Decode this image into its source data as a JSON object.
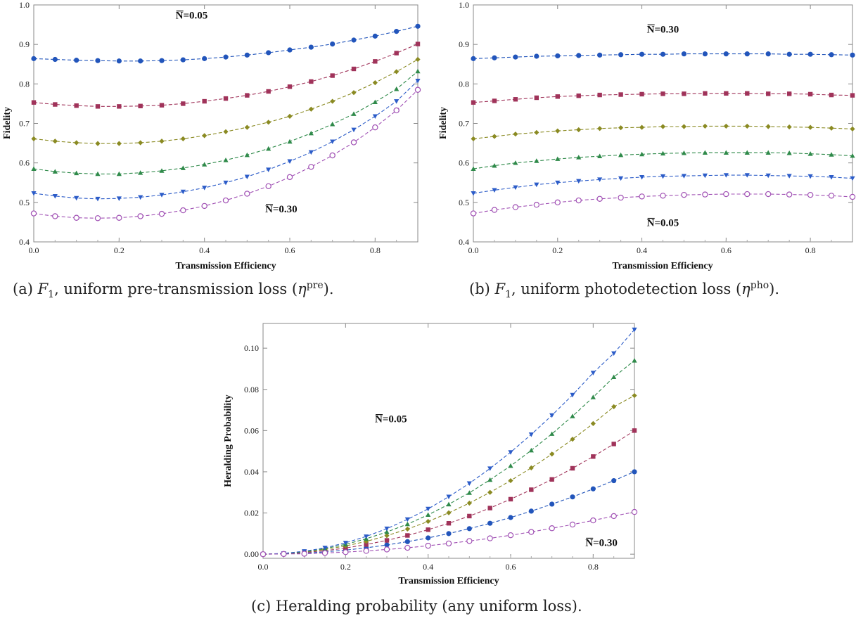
{
  "captions": {
    "a": {
      "prefix": "(a) ",
      "F": "F",
      "sub": "1",
      "mid": ", uniform pre-transmission loss (",
      "eta": "η",
      "sup": "pre",
      "end": ")."
    },
    "b": {
      "prefix": "(b) ",
      "F": "F",
      "sub": "1",
      "mid": ", uniform photodetection loss (",
      "eta": "η",
      "sup": "pho",
      "end": ")."
    },
    "c": {
      "text": "(c) Heralding probability (any uniform loss)."
    }
  },
  "series_styles": [
    {
      "color": "#2255bb",
      "marker": "circle"
    },
    {
      "color": "#a0335a",
      "marker": "square"
    },
    {
      "color": "#8a8a22",
      "marker": "diamond"
    },
    {
      "color": "#2f8a4a",
      "marker": "triangle-up"
    },
    {
      "color": "#2c5cc8",
      "marker": "triangle-down"
    },
    {
      "color": "#a050b4",
      "marker": "circle-open"
    }
  ],
  "chart_data": [
    {
      "type": "scatter",
      "xlabel": "Transmission Efficiency",
      "ylabel": "Fidelity",
      "xlim": [
        0,
        0.9
      ],
      "ylim": [
        0.4,
        1.0
      ],
      "xticks": [
        "0.0",
        "0.2",
        "0.4",
        "0.6",
        "0.8"
      ],
      "yticks": [
        "0.4",
        "0.5",
        "0.6",
        "0.7",
        "0.8",
        "0.9",
        "1.0"
      ],
      "annotations": [
        {
          "text": "N=0.05",
          "at_x": 0.37,
          "at_y": 0.965
        },
        {
          "text": "N=0.30",
          "at_x": 0.58,
          "at_y": 0.475
        }
      ],
      "x": [
        0,
        0.05,
        0.1,
        0.15,
        0.2,
        0.25,
        0.3,
        0.35,
        0.4,
        0.45,
        0.5,
        0.55,
        0.6,
        0.65,
        0.7,
        0.75,
        0.8,
        0.85,
        0.9
      ],
      "series": [
        {
          "values": [
            0.864,
            0.862,
            0.86,
            0.859,
            0.858,
            0.858,
            0.859,
            0.861,
            0.864,
            0.868,
            0.873,
            0.879,
            0.886,
            0.893,
            0.901,
            0.911,
            0.921,
            0.933,
            0.946
          ]
        },
        {
          "values": [
            0.753,
            0.748,
            0.745,
            0.743,
            0.743,
            0.744,
            0.746,
            0.75,
            0.756,
            0.763,
            0.771,
            0.781,
            0.793,
            0.806,
            0.821,
            0.838,
            0.857,
            0.878,
            0.901
          ]
        },
        {
          "values": [
            0.661,
            0.655,
            0.651,
            0.649,
            0.649,
            0.651,
            0.655,
            0.661,
            0.669,
            0.679,
            0.69,
            0.703,
            0.718,
            0.736,
            0.756,
            0.778,
            0.803,
            0.831,
            0.862
          ]
        },
        {
          "values": [
            0.585,
            0.578,
            0.574,
            0.572,
            0.572,
            0.575,
            0.58,
            0.587,
            0.596,
            0.607,
            0.62,
            0.636,
            0.654,
            0.675,
            0.698,
            0.724,
            0.754,
            0.787,
            0.832
          ]
        },
        {
          "values": [
            0.523,
            0.516,
            0.511,
            0.509,
            0.51,
            0.513,
            0.519,
            0.527,
            0.537,
            0.55,
            0.565,
            0.583,
            0.604,
            0.627,
            0.654,
            0.684,
            0.718,
            0.756,
            0.808
          ]
        },
        {
          "values": [
            0.472,
            0.465,
            0.461,
            0.46,
            0.461,
            0.465,
            0.471,
            0.48,
            0.491,
            0.505,
            0.522,
            0.541,
            0.564,
            0.59,
            0.619,
            0.652,
            0.69,
            0.733,
            0.785
          ]
        }
      ]
    },
    {
      "type": "scatter",
      "xlabel": "Transmission Efficiency",
      "ylabel": "Fidelity",
      "xlim": [
        0,
        0.9
      ],
      "ylim": [
        0.4,
        1.0
      ],
      "xticks": [
        "0.0",
        "0.2",
        "0.4",
        "0.6",
        "0.8"
      ],
      "yticks": [
        "0.4",
        "0.5",
        "0.6",
        "0.7",
        "0.8",
        "0.9",
        "1.0"
      ],
      "annotations": [
        {
          "text": "N=0.30",
          "at_x": 0.45,
          "at_y": 0.93
        },
        {
          "text": "N=0.05",
          "at_x": 0.45,
          "at_y": 0.44
        }
      ],
      "x": [
        0,
        0.05,
        0.1,
        0.15,
        0.2,
        0.25,
        0.3,
        0.35,
        0.4,
        0.45,
        0.5,
        0.55,
        0.6,
        0.65,
        0.7,
        0.75,
        0.8,
        0.85,
        0.9
      ],
      "series": [
        {
          "values": [
            0.864,
            0.866,
            0.868,
            0.87,
            0.871,
            0.872,
            0.873,
            0.874,
            0.875,
            0.875,
            0.876,
            0.876,
            0.876,
            0.876,
            0.876,
            0.875,
            0.875,
            0.874,
            0.873
          ]
        },
        {
          "values": [
            0.753,
            0.757,
            0.761,
            0.765,
            0.768,
            0.77,
            0.772,
            0.773,
            0.774,
            0.775,
            0.775,
            0.776,
            0.776,
            0.776,
            0.775,
            0.775,
            0.774,
            0.772,
            0.771
          ]
        },
        {
          "values": [
            0.661,
            0.667,
            0.673,
            0.677,
            0.681,
            0.684,
            0.687,
            0.689,
            0.69,
            0.692,
            0.692,
            0.693,
            0.693,
            0.693,
            0.692,
            0.691,
            0.69,
            0.688,
            0.686
          ]
        },
        {
          "values": [
            0.585,
            0.593,
            0.6,
            0.605,
            0.61,
            0.614,
            0.617,
            0.62,
            0.622,
            0.624,
            0.625,
            0.626,
            0.626,
            0.626,
            0.626,
            0.625,
            0.623,
            0.621,
            0.618
          ]
        },
        {
          "values": [
            0.523,
            0.531,
            0.538,
            0.545,
            0.55,
            0.554,
            0.558,
            0.561,
            0.564,
            0.566,
            0.567,
            0.568,
            0.569,
            0.569,
            0.568,
            0.567,
            0.566,
            0.564,
            0.561
          ]
        },
        {
          "values": [
            0.472,
            0.481,
            0.488,
            0.494,
            0.5,
            0.505,
            0.509,
            0.512,
            0.515,
            0.517,
            0.519,
            0.52,
            0.521,
            0.521,
            0.521,
            0.52,
            0.519,
            0.517,
            0.514
          ]
        }
      ]
    },
    {
      "type": "scatter",
      "xlabel": "Transmission Efficiency",
      "ylabel": "Heralding Probability",
      "xlim": [
        0,
        0.9
      ],
      "ylim": [
        -0.002,
        0.112
      ],
      "xticks": [
        "0.0",
        "0.2",
        "0.4",
        "0.6",
        "0.8"
      ],
      "yticks": [
        "0.00",
        "0.02",
        "0.04",
        "0.06",
        "0.08",
        "0.10"
      ],
      "annotations": [
        {
          "text": "N=0.05",
          "at_x": 0.31,
          "at_y": 0.064
        },
        {
          "text": "N=0.30",
          "at_x": 0.82,
          "at_y": 0.004
        }
      ],
      "x": [
        0,
        0.05,
        0.1,
        0.15,
        0.2,
        0.25,
        0.3,
        0.35,
        0.4,
        0.45,
        0.5,
        0.55,
        0.6,
        0.65,
        0.7,
        0.75,
        0.8,
        0.85,
        0.9
      ],
      "series": [
        {
          "values": [
            0.0,
            0.0001,
            0.0005,
            0.0011,
            0.002,
            0.0031,
            0.0045,
            0.0061,
            0.0079,
            0.01,
            0.0124,
            0.015,
            0.0178,
            0.0209,
            0.0243,
            0.0278,
            0.0317,
            0.0357,
            0.04
          ]
        },
        {
          "values": [
            0.0,
            0.0002,
            0.0008,
            0.0017,
            0.003,
            0.0047,
            0.0067,
            0.0091,
            0.0119,
            0.015,
            0.0185,
            0.0224,
            0.0267,
            0.0313,
            0.0363,
            0.0417,
            0.0474,
            0.0535,
            0.06
          ]
        },
        {
          "values": [
            0.0,
            0.0003,
            0.001,
            0.0023,
            0.004,
            0.0062,
            0.009,
            0.0122,
            0.0159,
            0.0201,
            0.0248,
            0.03,
            0.0357,
            0.0419,
            0.0486,
            0.0558,
            0.0634,
            0.0716,
            0.077
          ]
        },
        {
          "values": [
            0.0,
            0.0003,
            0.0012,
            0.0027,
            0.0048,
            0.0075,
            0.0108,
            0.0146,
            0.0191,
            0.0242,
            0.0298,
            0.0361,
            0.0429,
            0.0504,
            0.0584,
            0.067,
            0.0762,
            0.086,
            0.094
          ]
        },
        {
          "values": [
            0.0,
            0.0004,
            0.0014,
            0.0031,
            0.0055,
            0.0086,
            0.0124,
            0.0169,
            0.022,
            0.0279,
            0.0344,
            0.0416,
            0.0495,
            0.0581,
            0.0674,
            0.0773,
            0.088,
            0.0975,
            0.109
          ]
        },
        {
          "values": [
            0.0,
            0.0001,
            0.0002,
            0.0006,
            0.001,
            0.0016,
            0.0023,
            0.0031,
            0.0041,
            0.0052,
            0.0064,
            0.0077,
            0.0092,
            0.0108,
            0.0126,
            0.0144,
            0.0164,
            0.0185,
            0.0205
          ]
        }
      ]
    }
  ]
}
